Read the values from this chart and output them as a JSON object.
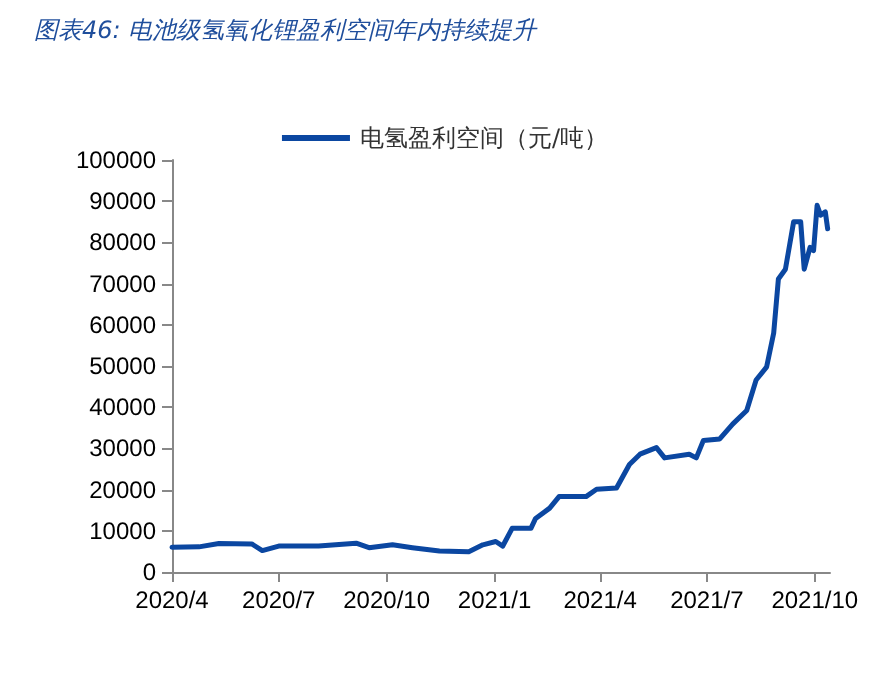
{
  "chart_data": {
    "type": "line",
    "title": "图表46: 电池级氢氧化锂盈利空间年内持续提升",
    "x": [
      "2020-04-01",
      "2020-04-24",
      "2020-05-11",
      "2020-06-08",
      "2020-06-17",
      "2020-07-01",
      "2020-08-04",
      "2020-09-05",
      "2020-09-16",
      "2020-10-06",
      "2020-10-23",
      "2020-11-15",
      "2020-12-10",
      "2020-12-22",
      "2021-01-02",
      "2021-01-08",
      "2021-01-16",
      "2021-02-01",
      "2021-02-05",
      "2021-02-17",
      "2021-02-25",
      "2021-03-20",
      "2021-03-29",
      "2021-04-15",
      "2021-04-26",
      "2021-05-05",
      "2021-05-19",
      "2021-05-26",
      "2021-06-16",
      "2021-06-22",
      "2021-06-28",
      "2021-07-12",
      "2021-07-23",
      "2021-08-04",
      "2021-08-12",
      "2021-08-21",
      "2021-08-27",
      "2021-08-31",
      "2021-09-06",
      "2021-09-13",
      "2021-09-19",
      "2021-09-22",
      "2021-09-27",
      "2021-09-30",
      "2021-10-03",
      "2021-10-06",
      "2021-10-10",
      "2021-10-12"
    ],
    "series": [
      {
        "name": "电氢盈利空间（元/吨）",
        "color": "#0b47a1",
        "values": [
          6000,
          6100,
          6900,
          6800,
          5200,
          6300,
          6300,
          7000,
          5900,
          6600,
          5900,
          5100,
          4900,
          6600,
          7400,
          6300,
          10600,
          10600,
          13000,
          15500,
          18300,
          18300,
          20100,
          20400,
          26100,
          28600,
          30200,
          27700,
          28600,
          27700,
          31900,
          32300,
          35900,
          39200,
          46600,
          49800,
          58000,
          71100,
          73500,
          85000,
          85000,
          73500,
          78800,
          78000,
          89000,
          86600,
          87400,
          83300
        ]
      }
    ],
    "xlim": [
      "2020-04-01",
      "2021-10-14"
    ],
    "xticks": [
      {
        "value": "2020-04-01",
        "label": "2020/4"
      },
      {
        "value": "2020-07-01",
        "label": "2020/7"
      },
      {
        "value": "2020-10-01",
        "label": "2020/10"
      },
      {
        "value": "2021-01-01",
        "label": "2021/1"
      },
      {
        "value": "2021-04-01",
        "label": "2021/4"
      },
      {
        "value": "2021-07-01",
        "label": "2021/7"
      },
      {
        "value": "2021-10-01",
        "label": "2021/10"
      }
    ],
    "ylim": [
      0,
      100000
    ],
    "yticks": [
      0,
      10000,
      20000,
      30000,
      40000,
      50000,
      60000,
      70000,
      80000,
      90000,
      100000
    ],
    "grid": false,
    "legend": "top",
    "marker": "none",
    "line_style": "solid"
  }
}
